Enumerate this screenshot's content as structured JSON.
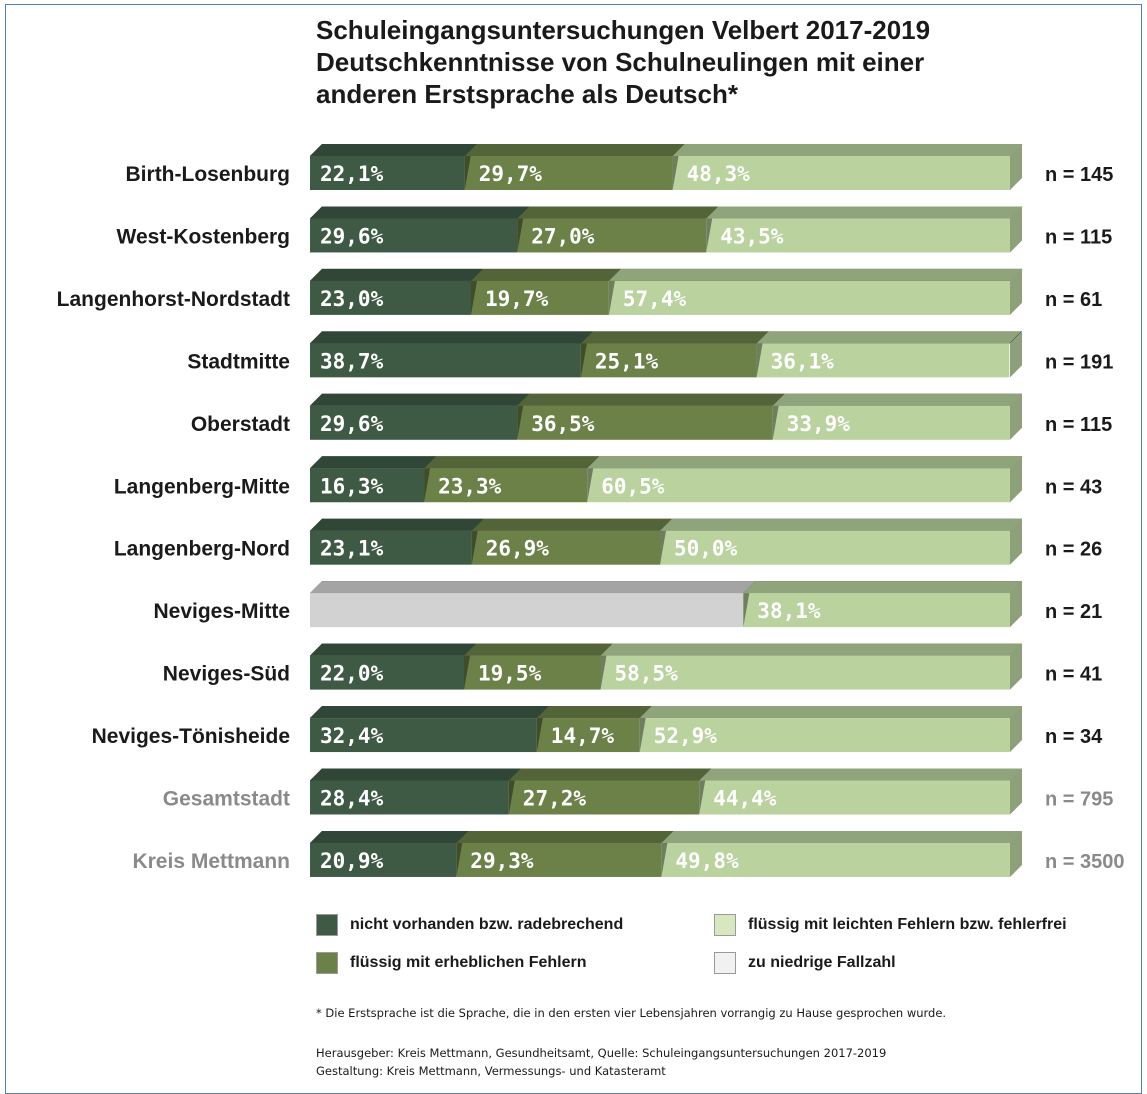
{
  "title_lines": [
    "Schuleingangsuntersuchungen Velbert 2017-2019",
    "Deutschkenntnisse von Schulneulingen mit einer",
    "anderen Erstsprache als Deutsch*"
  ],
  "chart_data": {
    "type": "bar",
    "stacked": true,
    "orientation": "horizontal",
    "xlim": [
      0,
      100
    ],
    "categories": [
      "Birth-Losenburg",
      "West-Kostenberg",
      "Langenhorst-Nordstadt",
      "Stadtmitte",
      "Oberstadt",
      "Langenberg-Mitte",
      "Langenberg-Nord",
      "Neviges-Mitte",
      "Neviges-Süd",
      "Neviges-Tönisheide",
      "Gesamtstadt",
      "Kreis Mettmann"
    ],
    "series": [
      {
        "name": "nicht vorhanden bzw. radebrechend",
        "color": "#3e5a45",
        "values": [
          22.1,
          29.6,
          23.0,
          38.7,
          29.6,
          16.3,
          23.1,
          null,
          22.0,
          32.4,
          28.4,
          20.9
        ],
        "labels": [
          "22,1%",
          "29,6%",
          "23,0%",
          "38,7%",
          "29,6%",
          "16,3%",
          "23,1%",
          "",
          "22,0%",
          "32,4%",
          "28,4%",
          "20,9%"
        ]
      },
      {
        "name": "flüssig mit erheblichen Fehlern",
        "color": "#6b8148",
        "values": [
          29.7,
          27.0,
          19.7,
          25.1,
          36.5,
          23.3,
          26.9,
          null,
          19.5,
          14.7,
          27.2,
          29.3
        ],
        "labels": [
          "29,7%",
          "27,0%",
          "19,7%",
          "25,1%",
          "36,5%",
          "23,3%",
          "26,9%",
          "",
          "19,5%",
          "14,7%",
          "27,2%",
          "29,3%"
        ]
      },
      {
        "name": "flüssig mit leichten Fehlern bzw. fehlerfrei",
        "color": "#b9d29e",
        "values": [
          48.3,
          43.5,
          57.4,
          36.1,
          33.9,
          60.5,
          50.0,
          38.1,
          58.5,
          52.9,
          44.4,
          49.8
        ],
        "labels": [
          "48,3%",
          "43,5%",
          "57,4%",
          "36,1%",
          "33,9%",
          "60,5%",
          "50,0%",
          "38,1%",
          "58,5%",
          "52,9%",
          "44,4%",
          "49,8%"
        ]
      }
    ],
    "low_count": {
      "name": "zu niedrige Fallzahl",
      "color": "#d2d2d2",
      "values": [
        null,
        null,
        null,
        null,
        null,
        null,
        null,
        61.9,
        null,
        null,
        null,
        null
      ]
    },
    "n_labels": [
      "n = 145",
      "n = 115",
      "n = 61",
      "n = 191",
      "n = 115",
      "n = 43",
      "n = 26",
      "n = 21",
      "n = 41",
      "n = 34",
      "n = 795",
      "n = 3500"
    ],
    "summary_rows": [
      "Gesamtstadt",
      "Kreis Mettmann"
    ],
    "colors": {
      "label": "#1a1a1a",
      "summary_label": "#8a8a8a",
      "value_text": "#ffffff",
      "bar_top": "#24321f"
    }
  },
  "legend": [
    {
      "label": "nicht vorhanden bzw. radebrechend",
      "color": "#3e5a45"
    },
    {
      "label": "flüssig mit leichten Fehlern bzw. fehlerfrei",
      "color": "#d7e8be"
    },
    {
      "label": "flüssig mit erheblichen Fehlern",
      "color": "#6b8148"
    },
    {
      "label": "zu niedrige Fallzahl",
      "color": "#f1f1f1"
    }
  ],
  "footnote": "* Die Erstsprache ist die Sprache, die in den ersten vier Lebensjahren vorrangig zu Hause gesprochen wurde.",
  "credits": [
    "Herausgeber: Kreis Mettmann, Gesundheitsamt, Quelle: Schuleingangsuntersuchungen 2017-2019",
    "Gestaltung: Kreis Mettmann, Vermessungs- und Katasteramt"
  ]
}
